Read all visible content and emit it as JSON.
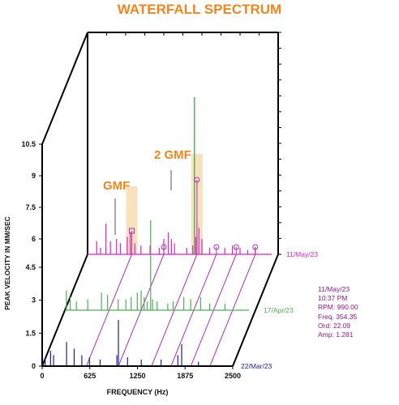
{
  "chart_data": {
    "type": "waterfall",
    "title": "WATERFALL SPECTRUM",
    "xlabel": "FREQUENCY (Hz)",
    "ylabel": "PEAK VELOCITY IN MM/SEC",
    "xlim": [
      0,
      2500
    ],
    "x_ticks": [
      "0",
      "625",
      "1250",
      "1875",
      "2500"
    ],
    "front_y_ticks": [
      "0",
      "1.5",
      "3",
      "4.5"
    ],
    "back_y_ticks": [
      "6",
      "7.5",
      "9",
      "10.5"
    ],
    "annotations": [
      "GMF",
      "2 GMF"
    ],
    "series": [
      {
        "name": "22/Mar/23",
        "color": "#1c1ca0",
        "peaks": [
          [
            40,
            0.4
          ],
          [
            110,
            0.7
          ],
          [
            150,
            0.5
          ],
          [
            320,
            1.1
          ],
          [
            420,
            0.8
          ],
          [
            520,
            0.5
          ],
          [
            620,
            0.4
          ],
          [
            760,
            0.3
          ],
          [
            980,
            0.5
          ],
          [
            1000,
            2.1
          ],
          [
            1120,
            0.4
          ],
          [
            1300,
            0.3
          ],
          [
            1560,
            0.3
          ],
          [
            1780,
            0.5
          ],
          [
            1830,
            1.0
          ],
          [
            2050,
            0.2
          ]
        ]
      },
      {
        "name": "17/Apr/23",
        "color": "#4caf50",
        "peaks": [
          [
            20,
            0.9
          ],
          [
            70,
            0.6
          ],
          [
            150,
            0.4
          ],
          [
            300,
            0.5
          ],
          [
            480,
            0.8
          ],
          [
            560,
            0.7
          ],
          [
            700,
            0.5
          ],
          [
            800,
            0.5
          ],
          [
            870,
            0.6
          ],
          [
            950,
            0.8
          ],
          [
            1000,
            0.9
          ],
          [
            1040,
            0.6
          ],
          [
            1080,
            0.4
          ],
          [
            1125,
            4.1
          ],
          [
            1150,
            0.5
          ],
          [
            1210,
            0.4
          ],
          [
            1350,
            0.3
          ],
          [
            1420,
            0.4
          ],
          [
            1560,
            0.6
          ],
          [
            1650,
            0.5
          ],
          [
            1780,
            0.6
          ],
          [
            1900,
            0.3
          ],
          [
            2100,
            0.3
          ]
        ]
      },
      {
        "name": "11/May/23",
        "color": "#e020c8",
        "peaks": [
          [
            120,
            0.6
          ],
          [
            170,
            0.3
          ],
          [
            240,
            1.4
          ],
          [
            300,
            0.6
          ],
          [
            380,
            0.7
          ],
          [
            430,
            0.5
          ],
          [
            520,
            0.8
          ],
          [
            560,
            1.0
          ],
          [
            620,
            0.5
          ],
          [
            700,
            0.4
          ],
          [
            820,
            0.4
          ],
          [
            940,
            0.3
          ],
          [
            1000,
            0.7
          ],
          [
            1060,
            1.0
          ],
          [
            1100,
            0.7
          ],
          [
            1140,
            0.5
          ],
          [
            1300,
            0.3
          ],
          [
            1380,
            0.4
          ],
          [
            1420,
            0.8
          ],
          [
            1460,
            1.2
          ],
          [
            1500,
            0.7
          ],
          [
            1600,
            0.3
          ],
          [
            1800,
            0.3
          ],
          [
            1900,
            0.4
          ],
          [
            2000,
            0.3
          ],
          [
            2100,
            0.2
          ],
          [
            2200,
            0.3
          ]
        ]
      }
    ],
    "highlight_lines": [
      {
        "series": "11/May/23",
        "x": 580,
        "y": 3.2
      },
      {
        "series": "11/May/23",
        "x": 1000,
        "y": 0.4
      },
      {
        "series": "11/May/23",
        "x": 1435,
        "y": 3.9
      },
      {
        "series": "11/May/23",
        "x": 1690,
        "y": 0.3
      },
      {
        "series": "11/May/23",
        "x": 1950,
        "y": 0.3
      },
      {
        "series": "11/May/23",
        "x": 2200,
        "y": 0.3
      },
      {
        "series": "17/Apr/23",
        "x": 1050,
        "y": 6.0
      }
    ],
    "harmonic_markers": [
      580,
      1000,
      1435,
      1690,
      1950,
      2200
    ],
    "gmf_bands": [
      {
        "label": "GMF",
        "x": 580
      },
      {
        "label": "2 GMF",
        "x": 1435
      }
    ],
    "readout": {
      "date": "11/May/23",
      "time": "10:37 PM",
      "rpm": "RPM: 990.00",
      "freq": "Freq. 354.35",
      "order": "Ord: 22.09",
      "amp": "Amp: 1.281"
    },
    "readout_color": "#8b1a8b",
    "title_color": "#f0861c",
    "harmonic_color": "#b030b8",
    "band_color": "#f7d7a8",
    "annotation_color": "#f0861c"
  }
}
